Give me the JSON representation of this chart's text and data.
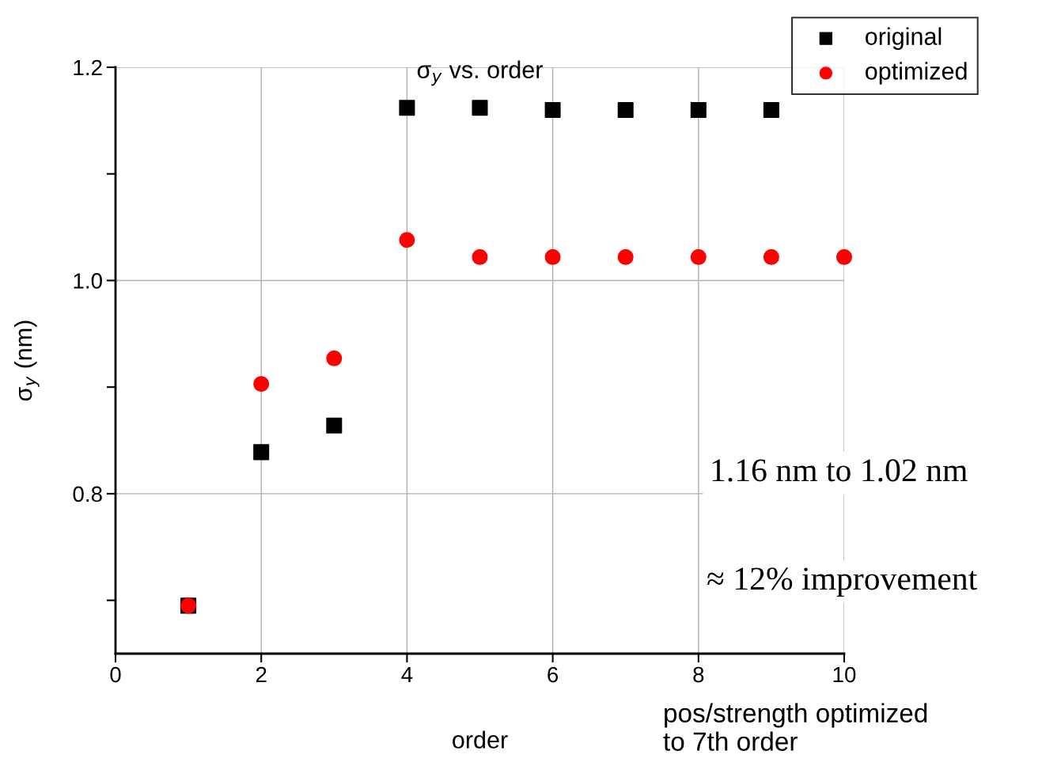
{
  "chart_data": {
    "type": "scatter",
    "title": "σ$_{y}$ vs. order",
    "xlabel": "order",
    "ylabel": "σ$_{y}$ (nm)",
    "xlim": [
      0,
      10
    ],
    "xticks": [
      0,
      2,
      4,
      6,
      8,
      10
    ],
    "ylim": [
      0.65,
      1.2
    ],
    "yticks": [
      {
        "value": 0.7,
        "label": null
      },
      0.8,
      {
        "value": 0.9,
        "label": null
      },
      {
        "value": 1.0,
        "label": "1.0"
      },
      {
        "value": 1.1,
        "label": null
      },
      1.2
    ],
    "grid": true,
    "legend": "top right",
    "series": [
      {
        "name": "original",
        "color": "#000000",
        "marker": "square",
        "x": [
          1,
          2,
          3,
          4,
          5,
          6,
          7,
          8,
          9
        ],
        "values": [
          0.695,
          0.839,
          0.864,
          1.162,
          1.162,
          1.16,
          1.16,
          1.16,
          1.16
        ]
      },
      {
        "name": "optimized",
        "color": "#ff0000",
        "marker": "circle",
        "x": [
          1,
          2,
          3,
          4,
          5,
          6,
          7,
          8,
          9,
          10
        ],
        "values": [
          0.695,
          0.903,
          0.927,
          1.038,
          1.022,
          1.022,
          1.022,
          1.022,
          1.022,
          1.022
        ]
      }
    ],
    "annotations": [
      "1.16 nm to 1.02 nm",
      "≈ 12% improvement",
      "pos/strength optimized\nto 7th order"
    ]
  }
}
